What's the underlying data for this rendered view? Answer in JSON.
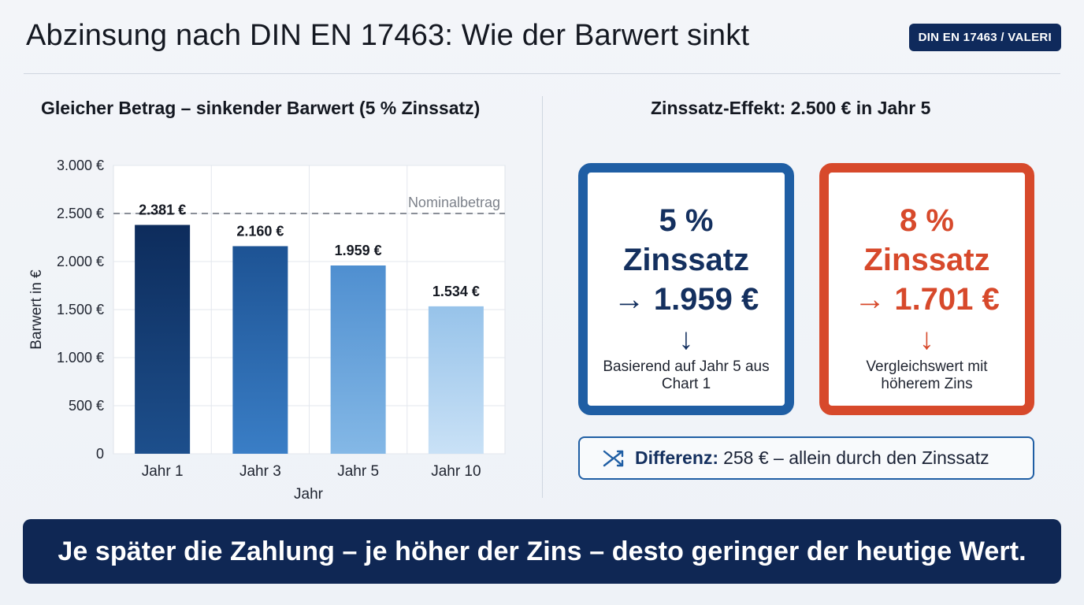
{
  "header": {
    "title": "Abzinsung nach DIN EN 17463: Wie der Barwert sinkt",
    "badge": "DIN EN 17463 / VALERI"
  },
  "left": {
    "heading": "Gleicher Betrag – sinkender Barwert (5 % Zinssatz)"
  },
  "chart_data": {
    "type": "bar",
    "title": "Gleicher Betrag – sinkender Barwert (5 % Zinssatz)",
    "categories": [
      "Jahr 1",
      "Jahr 3",
      "Jahr 5",
      "Jahr 10"
    ],
    "values": [
      2381,
      2160,
      1959,
      1534
    ],
    "value_labels": [
      "2.381 €",
      "2.160 €",
      "1.959 €",
      "1.534 €"
    ],
    "xlabel": "Jahr",
    "ylabel": "Barwert in €",
    "ylim": [
      0,
      3000
    ],
    "yticks": [
      0,
      500,
      1000,
      1500,
      2000,
      2500,
      3000
    ],
    "ytick_labels": [
      "0",
      "500 €",
      "1.000 €",
      "1.500 €",
      "2.000 €",
      "2.500 €",
      "3.000 €"
    ],
    "reference_line": {
      "value": 2500,
      "label": "Nominalbetrag",
      "color": "#8a8f98"
    },
    "bar_colors": [
      [
        "#1d4f8c",
        "#0d2c5c"
      ],
      [
        "#3a7ec6",
        "#1d5394"
      ],
      [
        "#84b8e6",
        "#4f8fd0"
      ],
      [
        "#c9e1f6",
        "#97c3ea"
      ]
    ],
    "grid": true
  },
  "right": {
    "heading": "Zinssatz-Effekt: 2.500 € in Jahr 5",
    "card_blue": {
      "rate": "5 %",
      "label": "Zinssatz",
      "result": "→ 1.959 €",
      "arrow": "↓",
      "note": "Basierend auf Jahr 5 aus Chart 1",
      "color": "#1f5ea4"
    },
    "card_red": {
      "rate": "8 %",
      "label": "Zinssatz",
      "result": "→ 1.701 €",
      "arrow": "↓",
      "note": "Vergleichswert mit höherem Zins",
      "color": "#d7492b"
    },
    "difference": {
      "label": "Differenz:",
      "text": "258 € – allein durch den Zinssatz",
      "icon": "shuffle-icon"
    }
  },
  "footer": {
    "text": "Je später die Zahlung – je höher der Zins – desto geringer der heutige Wert."
  }
}
